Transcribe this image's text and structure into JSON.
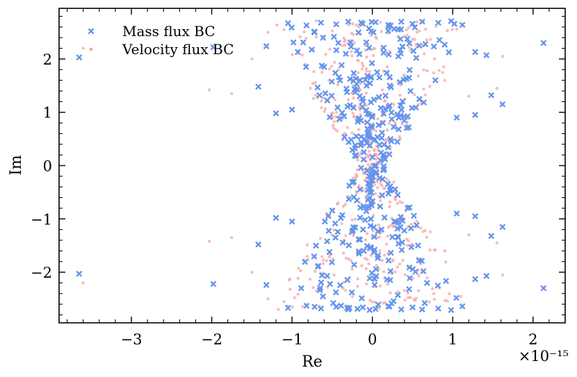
{
  "chart_data": {
    "type": "scatter",
    "title": "",
    "xlabel": "Re",
    "ylabel": "Im",
    "x_offset_label": "×10⁻¹⁵",
    "xlim": [
      -3.9,
      2.4
    ],
    "ylim": [
      -2.95,
      2.95
    ],
    "xticks": [
      -3,
      -2,
      -1,
      0,
      1,
      2
    ],
    "yticks": [
      -2,
      -1,
      0,
      1,
      2
    ],
    "xtick_labels": [
      "−3",
      "−2",
      "−1",
      "0",
      "1",
      "2"
    ],
    "ytick_labels": [
      "−2",
      "−1",
      "0",
      "1",
      "2"
    ],
    "grid": false,
    "legend_position": "top-left",
    "series": [
      {
        "name": "Mass flux BC",
        "marker": "x",
        "color": "#6495ED",
        "points": [
          [
            -3.65,
            2.03
          ],
          [
            -3.65,
            -2.03
          ],
          [
            -1.98,
            2.22
          ],
          [
            -1.98,
            -2.22
          ],
          [
            2.13,
            2.3
          ],
          [
            2.13,
            -2.3
          ],
          [
            -1.05,
            2.67
          ],
          [
            -0.82,
            2.63
          ],
          [
            -0.64,
            2.68
          ],
          [
            -0.45,
            2.65
          ],
          [
            -0.3,
            2.7
          ],
          [
            -0.12,
            2.66
          ],
          [
            0.04,
            2.69
          ],
          [
            0.2,
            2.64
          ],
          [
            0.36,
            2.7
          ],
          [
            0.5,
            2.66
          ],
          [
            0.62,
            2.7
          ],
          [
            0.82,
            2.68
          ],
          [
            0.98,
            2.71
          ],
          [
            1.12,
            2.64
          ],
          [
            -1.05,
            -2.67
          ],
          [
            -0.82,
            -2.63
          ],
          [
            -0.64,
            -2.68
          ],
          [
            -0.45,
            -2.65
          ],
          [
            -0.3,
            -2.7
          ],
          [
            -0.12,
            -2.66
          ],
          [
            0.04,
            -2.69
          ],
          [
            0.2,
            -2.64
          ],
          [
            0.36,
            -2.7
          ],
          [
            0.5,
            -2.66
          ],
          [
            0.62,
            -2.7
          ],
          [
            0.82,
            -2.68
          ],
          [
            0.98,
            -2.71
          ],
          [
            1.12,
            -2.64
          ],
          [
            1.28,
            2.13
          ],
          [
            1.42,
            2.07
          ],
          [
            1.62,
            1.15
          ],
          [
            1.48,
            1.32
          ],
          [
            1.28,
            0.95
          ],
          [
            1.05,
            0.9
          ],
          [
            -1.32,
            2.24
          ],
          [
            -1.42,
            1.48
          ],
          [
            -1.2,
            0.98
          ],
          [
            -1.0,
            1.05
          ],
          [
            1.28,
            -2.13
          ],
          [
            1.42,
            -2.07
          ],
          [
            1.62,
            -1.15
          ],
          [
            1.48,
            -1.32
          ],
          [
            1.28,
            -0.95
          ],
          [
            1.05,
            -0.9
          ],
          [
            -1.32,
            -2.24
          ],
          [
            -1.42,
            -1.48
          ],
          [
            -1.2,
            -0.98
          ],
          [
            -1.0,
            -1.05
          ]
        ]
      },
      {
        "name": "Velocity flux BC",
        "marker": "o",
        "color": "#F4A6A6",
        "points": [
          [
            -3.6,
            2.2
          ],
          [
            -3.6,
            -2.2
          ],
          [
            -2.03,
            1.42
          ],
          [
            -2.03,
            -1.42
          ],
          [
            -1.75,
            1.35
          ],
          [
            -1.75,
            -1.35
          ],
          [
            1.62,
            2.05
          ],
          [
            1.62,
            -2.05
          ],
          [
            1.55,
            1.45
          ],
          [
            1.55,
            -1.45
          ],
          [
            -1.5,
            2.0
          ],
          [
            -1.5,
            -2.0
          ],
          [
            -1.3,
            2.5
          ],
          [
            -1.3,
            -2.5
          ],
          [
            -1.1,
            2.55
          ],
          [
            -1.1,
            -2.55
          ],
          [
            0.9,
            1.6
          ],
          [
            0.9,
            -1.6
          ],
          [
            1.2,
            1.3
          ],
          [
            1.2,
            -1.3
          ]
        ]
      }
    ]
  }
}
